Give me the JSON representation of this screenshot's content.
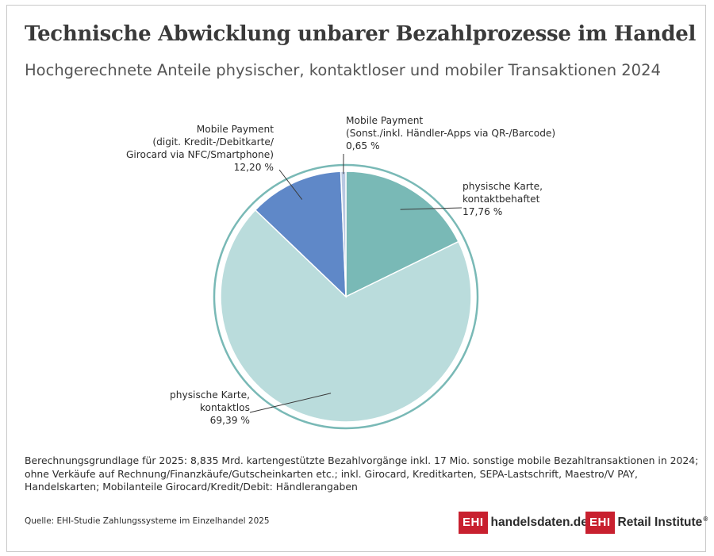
{
  "title": "Technische Abwicklung unbarer Bezahlprozesse im Handel",
  "subtitle": "Hochgerechnete Anteile physischer, kontaktloser und mobiler Transaktionen 2024",
  "chart_data": {
    "type": "pie",
    "title": "Technische Abwicklung unbarer Bezahlprozesse im Handel",
    "subtitle": "Hochgerechnete Anteile physischer, kontaktloser und mobiler Transaktionen 2024",
    "slices": [
      {
        "key": "kontaktbehaftet",
        "value": 17.76,
        "color": "#79b9b6",
        "label_lines": [
          "physische Karte,",
          "kontaktbehaftet",
          "17,76 %"
        ]
      },
      {
        "key": "kontaktlos",
        "value": 69.39,
        "color": "#badcdc",
        "label_lines": [
          "physische Karte,",
          "kontaktlos",
          "69,39 %"
        ]
      },
      {
        "key": "mobile_nfc",
        "value": 12.2,
        "color": "#5f88c8",
        "label_lines": [
          "Mobile Payment",
          "(digit. Kredit-/Debitkarte/",
          "Girocard via NFC/Smartphone)",
          "12,20 %"
        ]
      },
      {
        "key": "mobile_sonst",
        "value": 0.65,
        "color": "#b9c8e2",
        "label_lines": [
          "Mobile Payment",
          "(Sonst./inkl. Händler-Apps via QR-/Barcode)",
          "0,65 %"
        ]
      }
    ],
    "ring_color": "#79b9b6"
  },
  "footnote_lines": [
    "Berechnungsgrundlage für 2025: 8,835 Mrd. kartengestützte Bezahlvorgänge inkl. 17 Mio. sonstige mobile Bezahltransaktionen in 2024;",
    "ohne Verkäufe auf Rechnung/Finanzkäufe/Gutscheinkarten etc.; inkl. Girocard, Kreditkarten, SEPA-Lastschrift, Maestro/V PAY,",
    "Handelskarten; Mobilanteile Girocard/Kredit/Debit: Händlerangaben"
  ],
  "source": "Quelle: EHI-Studie Zahlungssysteme im Einzelhandel 2025",
  "logos": {
    "badge": "EHI",
    "handelsdaten": "handelsdaten.de",
    "retail_institute": "Retail Institute",
    "registered": "®",
    "brand_color": "#c8202f"
  }
}
